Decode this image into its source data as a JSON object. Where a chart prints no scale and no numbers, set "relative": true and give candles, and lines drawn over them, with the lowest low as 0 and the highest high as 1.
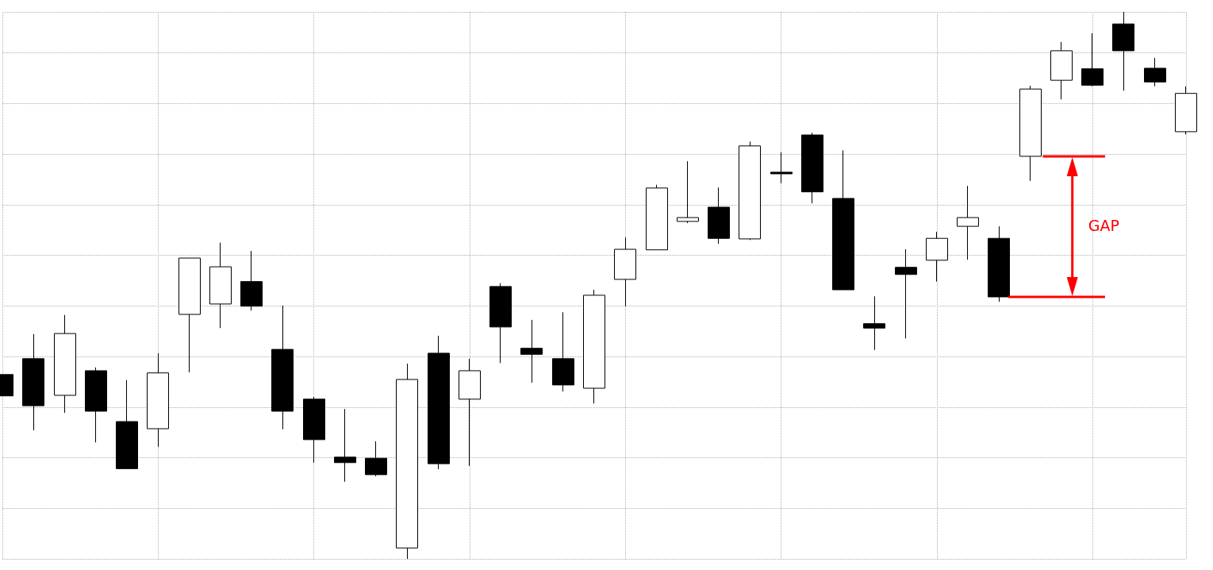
{
  "chart_data": {
    "type": "candlestick",
    "relative": true,
    "grid": true,
    "categories": [
      null,
      null,
      null,
      null,
      null,
      null,
      null,
      null,
      null,
      null,
      null,
      null,
      null,
      null,
      null,
      null,
      null,
      null,
      null,
      null,
      null,
      null,
      null,
      null,
      null,
      null,
      null,
      null,
      null,
      null,
      null,
      null,
      null,
      null,
      null,
      null,
      null,
      null,
      null
    ],
    "ohlc": [
      [
        0.337,
        0.337,
        0.298,
        0.298
      ],
      [
        0.366,
        0.411,
        0.235,
        0.28
      ],
      [
        0.299,
        0.446,
        0.267,
        0.412
      ],
      [
        0.344,
        0.35,
        0.213,
        0.27
      ],
      [
        0.251,
        0.327,
        0.164,
        0.165
      ],
      [
        0.238,
        0.376,
        0.205,
        0.34
      ],
      [
        0.447,
        0.55,
        0.341,
        0.55
      ],
      [
        0.466,
        0.578,
        0.422,
        0.534
      ],
      [
        0.507,
        0.563,
        0.454,
        0.462
      ],
      [
        0.383,
        0.463,
        0.237,
        0.27
      ],
      [
        0.292,
        0.296,
        0.176,
        0.218
      ],
      [
        0.186,
        0.274,
        0.141,
        0.176
      ],
      [
        0.184,
        0.215,
        0.151,
        0.154
      ],
      [
        0.02,
        0.357,
        0,
        0.328
      ],
      [
        0.376,
        0.408,
        0.164,
        0.174
      ],
      [
        0.292,
        0.366,
        0.17,
        0.344
      ],
      [
        0.498,
        0.504,
        0.358,
        0.424
      ],
      [
        0.385,
        0.437,
        0.322,
        0.374
      ],
      [
        0.366,
        0.451,
        0.306,
        0.318
      ],
      [
        0.312,
        0.492,
        0.284,
        0.482
      ],
      [
        0.511,
        0.588,
        0.462,
        0.566
      ],
      [
        0.565,
        0.684,
        0.565,
        0.678
      ],
      [
        0.617,
        0.727,
        0.614,
        0.624
      ],
      [
        0.643,
        0.679,
        0.576,
        0.586
      ],
      [
        0.585,
        0.763,
        0.583,
        0.755
      ],
      [
        0.707,
        0.743,
        0.687,
        0.704
      ],
      [
        0.775,
        0.779,
        0.65,
        0.671
      ],
      [
        0.659,
        0.747,
        0.492,
        0.492
      ],
      [
        0.43,
        0.48,
        0.382,
        0.422
      ],
      [
        0.533,
        0.566,
        0.403,
        0.52
      ],
      [
        0.546,
        0.598,
        0.507,
        0.586
      ],
      [
        0.608,
        0.682,
        0.547,
        0.624
      ],
      [
        0.586,
        0.608,
        0.47,
        0.479
      ],
      [
        0.736,
        0.865,
        0.691,
        0.859
      ],
      [
        0.875,
        0.945,
        0.84,
        0.929
      ],
      [
        0.896,
        0.961,
        0.864,
        0.866
      ],
      [
        0.978,
        1,
        0.856,
        0.929
      ],
      [
        0.897,
        0.916,
        0.864,
        0.872
      ],
      [
        0.781,
        0.864,
        0.776,
        0.851
      ]
    ],
    "annotations": [
      "GAP"
    ]
  }
}
